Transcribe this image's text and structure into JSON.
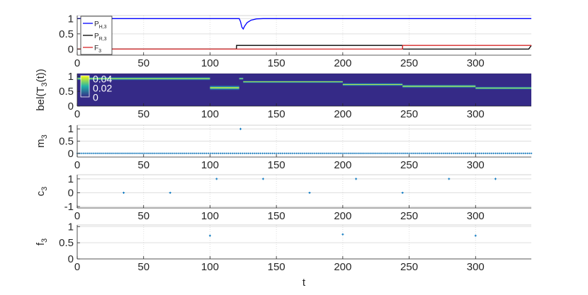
{
  "colors": {
    "blue": "#0000ff",
    "black": "#000000",
    "red": "#d62728",
    "marker": "#0072bd",
    "heat_bg": "#352a87",
    "heat_band": "#f9fb0e"
  },
  "chart_data": [
    {
      "type": "line",
      "ylabel": "",
      "xlim": [
        0,
        342
      ],
      "ylim": [
        -0.2,
        1.1
      ],
      "xticks": [
        "0",
        "50",
        "100",
        "150",
        "200",
        "250",
        "300"
      ],
      "yticks": [
        "0",
        "0.5",
        "1"
      ],
      "legend_position": "top-left",
      "legend": [
        {
          "label": "P",
          "sub": "H,3",
          "color_key": "blue"
        },
        {
          "label": "P",
          "sub": "R,3",
          "color_key": "black"
        },
        {
          "label": "F",
          "sub": "3",
          "color_key": "red"
        }
      ],
      "series": [
        {
          "name": "PH,3",
          "color_key": "blue",
          "x": [
            0,
            122,
            123,
            124,
            125,
            126,
            128,
            131,
            135,
            140,
            342
          ],
          "y": [
            1,
            1,
            0.9,
            0.72,
            0.66,
            0.75,
            0.87,
            0.95,
            0.99,
            1,
            1
          ]
        },
        {
          "name": "PR,3",
          "color_key": "black",
          "x": [
            0,
            119.9,
            120,
            245,
            245.1,
            340,
            342
          ],
          "y": [
            0,
            0,
            0.12,
            0.12,
            0,
            0,
            0.12
          ]
        },
        {
          "name": "F3",
          "color_key": "red",
          "x": [
            0,
            245,
            245.1,
            340,
            342
          ],
          "y": [
            0,
            0,
            0.12,
            0.12,
            0.12
          ]
        }
      ]
    },
    {
      "type": "heatmap",
      "ylabel": "bel(T3(t))",
      "ylabel_main": "bel(T",
      "ylabel_sub": "3",
      "ylabel_end": "(t))",
      "xlim": [
        0,
        342
      ],
      "ylim": [
        0,
        1.1
      ],
      "xticks": [
        "0",
        "50",
        "100",
        "150",
        "200",
        "250",
        "300"
      ],
      "yticks": [
        "0",
        "0.5",
        "1"
      ],
      "colorbar": {
        "labels": [
          "0.04",
          "0.02",
          "0"
        ],
        "range": [
          0,
          0.04
        ]
      },
      "segments": [
        {
          "x0": 0,
          "x1": 100,
          "y": 0.93,
          "spread": 0.07
        },
        {
          "x0": 100,
          "x1": 122,
          "y": 0.62,
          "spread": 0.1
        },
        {
          "x0": 122,
          "x1": 125,
          "y": 0.93,
          "spread": 0.05
        },
        {
          "x0": 125,
          "x1": 200,
          "y": 0.82,
          "spread": 0.05
        },
        {
          "x0": 200,
          "x1": 245,
          "y": 0.73,
          "spread": 0.06
        },
        {
          "x0": 245,
          "x1": 300,
          "y": 0.67,
          "spread": 0.07
        },
        {
          "x0": 300,
          "x1": 342,
          "y": 0.61,
          "spread": 0.06
        }
      ]
    },
    {
      "type": "scatter",
      "ylabel": "m3",
      "ylabel_main": "m",
      "ylabel_sub": "3",
      "xlim": [
        0,
        342
      ],
      "ylim": [
        -0.15,
        1.15
      ],
      "xticks": [
        "0",
        "50",
        "100",
        "150",
        "200",
        "250",
        "300"
      ],
      "yticks": [
        "0",
        "0.5",
        "1"
      ],
      "dense_zero_from": 0,
      "dense_zero_to": 342,
      "points": [
        {
          "x": 123,
          "y": 1
        }
      ]
    },
    {
      "type": "scatter",
      "ylabel": "c3",
      "ylabel_main": "c",
      "ylabel_sub": "3",
      "xlim": [
        0,
        342
      ],
      "ylim": [
        -1.1,
        1.3
      ],
      "xticks": [
        "0",
        "50",
        "100",
        "150",
        "200",
        "250",
        "300"
      ],
      "yticks": [
        "-1",
        "0",
        "1"
      ],
      "points": [
        {
          "x": 35,
          "y": 0
        },
        {
          "x": 70,
          "y": 0
        },
        {
          "x": 105,
          "y": 1
        },
        {
          "x": 140,
          "y": 1
        },
        {
          "x": 175,
          "y": 0
        },
        {
          "x": 210,
          "y": 1
        },
        {
          "x": 245,
          "y": 0
        },
        {
          "x": 280,
          "y": 1
        },
        {
          "x": 315,
          "y": 1
        }
      ]
    },
    {
      "type": "scatter",
      "ylabel": "f3",
      "ylabel_main": "f",
      "ylabel_sub": "3",
      "xlabel": "t",
      "xlim": [
        0,
        342
      ],
      "ylim": [
        0,
        1.05
      ],
      "xticks": [
        "0",
        "50",
        "100",
        "150",
        "200",
        "250",
        "300"
      ],
      "yticks": [
        "0",
        "0.5",
        "1"
      ],
      "points": [
        {
          "x": 100,
          "y": 0.72
        },
        {
          "x": 200,
          "y": 0.76
        },
        {
          "x": 300,
          "y": 0.72
        }
      ]
    }
  ]
}
